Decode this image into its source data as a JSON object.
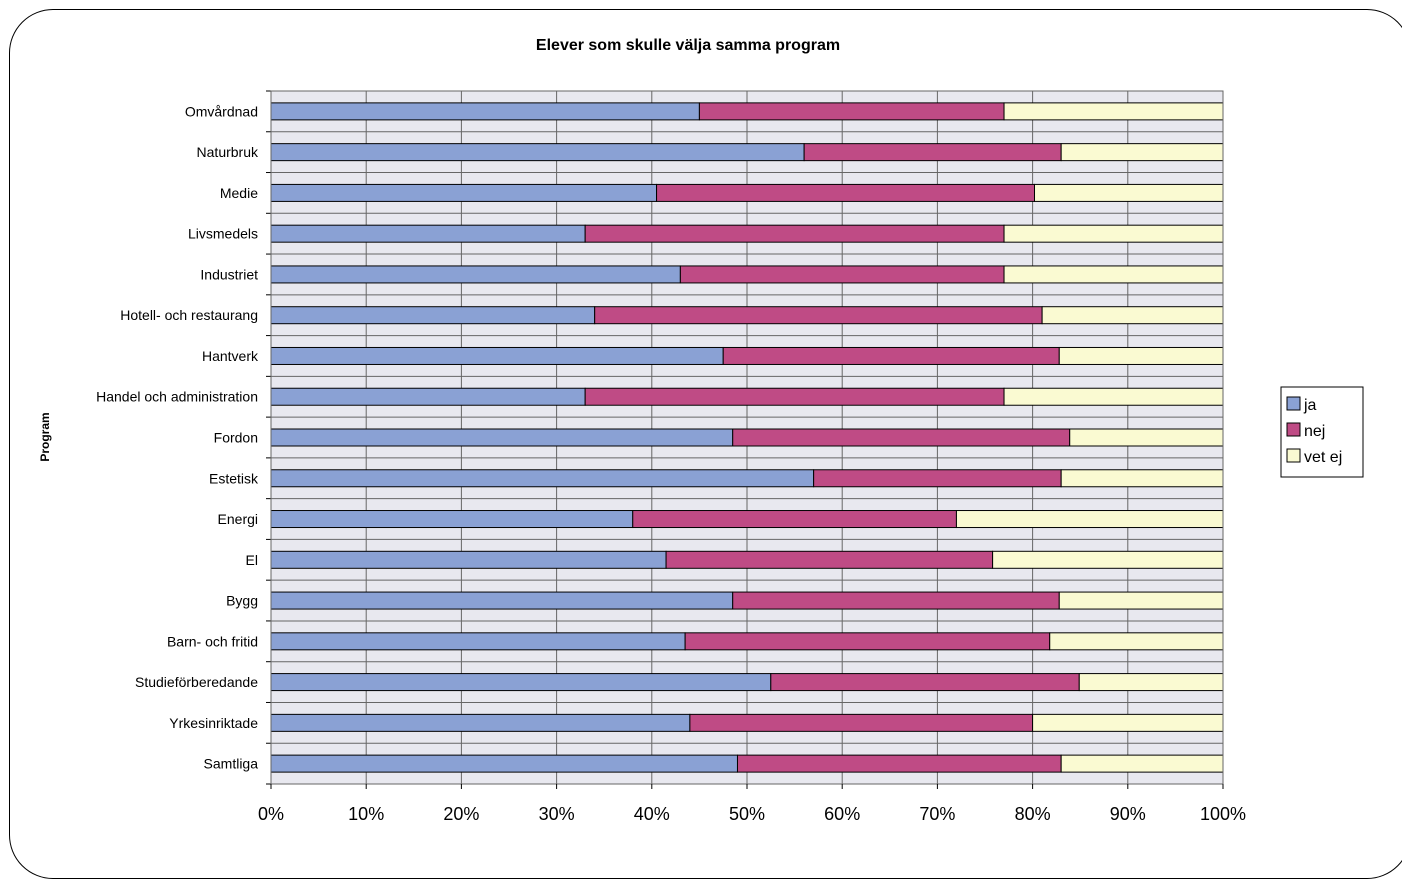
{
  "chart_data": {
    "type": "bar",
    "orientation": "horizontal",
    "stacked": "percent",
    "title": "Elever som skulle välja samma program",
    "ylabel": "Program",
    "xlabel": "",
    "xlim": [
      0,
      100
    ],
    "x_ticks": [
      "0%",
      "10%",
      "20%",
      "30%",
      "40%",
      "50%",
      "60%",
      "70%",
      "80%",
      "90%",
      "100%"
    ],
    "grid": true,
    "legend_position": "right",
    "categories": [
      "Omvårdnad",
      "Naturbruk",
      "Medie",
      "Livsmedels",
      "Industriet",
      "Hotell- och restaurang",
      "Hantverk",
      "Handel och administration",
      "Fordon",
      "Estetisk",
      "Energi",
      "El",
      "Bygg",
      "Barn- och fritid",
      "Studieförberedande",
      "Yrkesinriktade",
      "Samtliga"
    ],
    "series": [
      {
        "name": "ja",
        "color": "#8aa1d4",
        "values": [
          45,
          56,
          40.5,
          33,
          43,
          34,
          47.5,
          33,
          48.5,
          57,
          38,
          41.5,
          48.5,
          43.5,
          52.5,
          44,
          49
        ]
      },
      {
        "name": "nej",
        "color": "#bf4b85",
        "values": [
          32,
          27,
          39.7,
          44,
          34,
          47,
          35.3,
          44,
          35.4,
          26,
          34,
          34.3,
          34.3,
          38.3,
          32.4,
          36,
          34
        ]
      },
      {
        "name": "vet ej",
        "color": "#fafad2",
        "values": [
          23,
          17,
          19.8,
          23,
          23,
          19,
          17.2,
          23,
          16.1,
          17,
          28,
          24.2,
          17.2,
          18.2,
          15.1,
          20,
          17
        ]
      }
    ]
  }
}
